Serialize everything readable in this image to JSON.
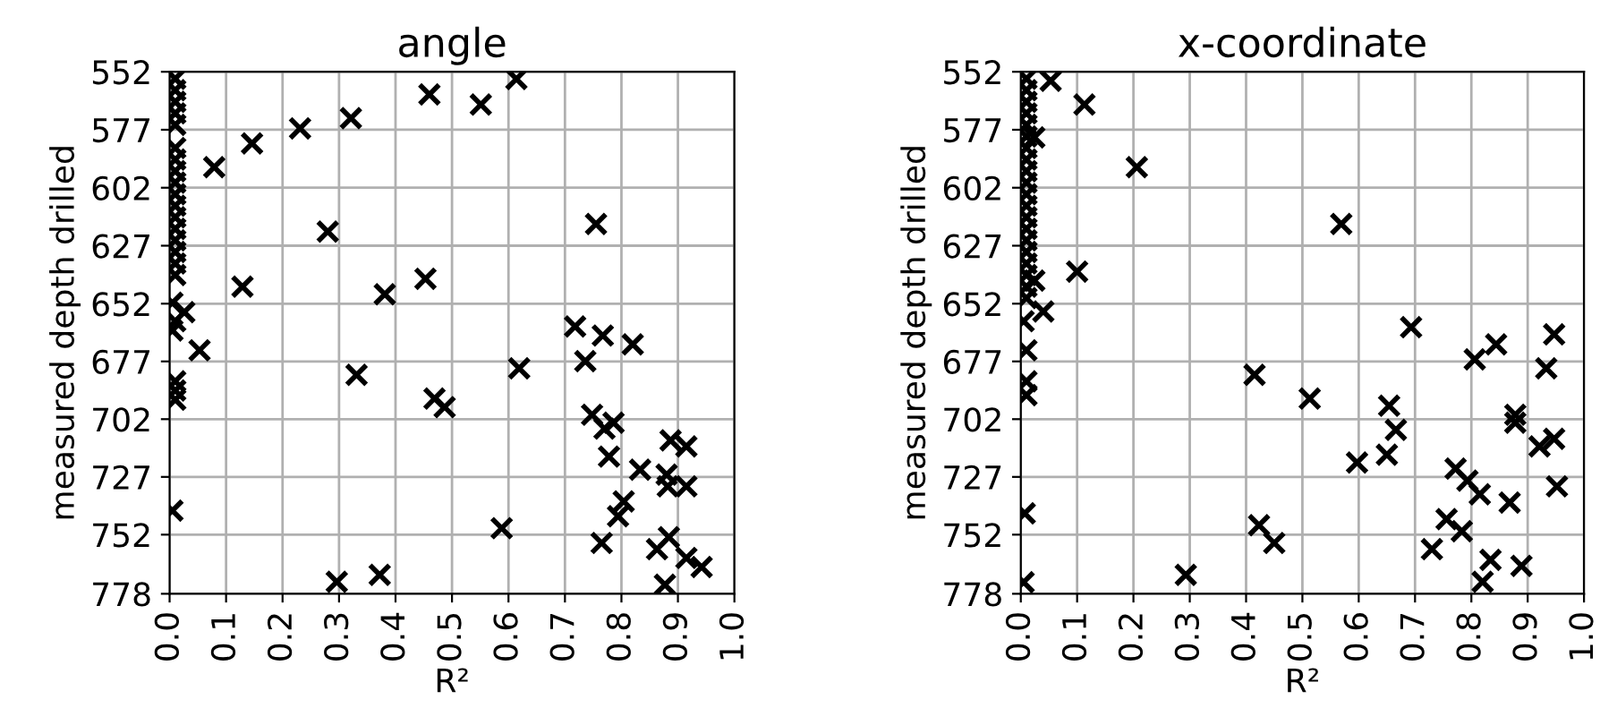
{
  "chart_data": [
    {
      "type": "scatter",
      "title": "angle",
      "xlabel": "R²",
      "ylabel": "measured depth drilled",
      "marker": "cross",
      "grid": true,
      "xlim": [
        0,
        1
      ],
      "xticks": [
        {
          "value": 0,
          "label": "0.0"
        },
        {
          "value": 0.1,
          "label": "0.1"
        },
        {
          "value": 0.2,
          "label": "0.2"
        },
        {
          "value": 0.3,
          "label": "0.3"
        },
        {
          "value": 0.4,
          "label": "0.4"
        },
        {
          "value": 0.5,
          "label": "0.5"
        },
        {
          "value": 0.6,
          "label": "0.6"
        },
        {
          "value": 0.7,
          "label": "0.7"
        },
        {
          "value": 0.8,
          "label": "0.8"
        },
        {
          "value": 0.9,
          "label": "0.9"
        },
        {
          "value": 1.0,
          "label": "1.0"
        }
      ],
      "ylim": [
        778,
        552
      ],
      "yticks": [
        {
          "value": 552,
          "label": "552"
        },
        {
          "value": 577.1,
          "label": "577"
        },
        {
          "value": 602.2,
          "label": "602"
        },
        {
          "value": 627.3,
          "label": "627"
        },
        {
          "value": 652.4,
          "label": "652"
        },
        {
          "value": 677.4,
          "label": "677"
        },
        {
          "value": 702.4,
          "label": "702"
        },
        {
          "value": 727.4,
          "label": "727"
        },
        {
          "value": 752.4,
          "label": "752"
        },
        {
          "value": 778,
          "label": "778"
        }
      ],
      "series": [
        {
          "color": "#000000",
          "x": [
            0.01,
            0.01,
            0.01,
            0.01,
            0.01,
            0.01,
            0.01,
            0.01,
            0.01,
            0.01,
            0.01,
            0.01,
            0.01,
            0.01,
            0.01,
            0.01,
            0.01,
            0.005,
            0.01,
            0.005,
            0.01,
            0.01,
            0.01,
            0.005,
            0.079,
            0.146,
            0.231,
            0.321,
            0.46,
            0.28,
            0.129,
            0.026,
            0.053,
            0.381,
            0.453,
            0.331,
            0.469,
            0.487,
            0.296,
            0.372,
            0.551,
            0.614,
            0.755,
            0.718,
            0.767,
            0.82,
            0.736,
            0.619,
            0.748,
            0.77,
            0.786,
            0.778,
            0.833,
            0.887,
            0.915,
            0.882,
            0.915,
            0.88,
            0.804,
            0.794,
            0.588,
            0.765,
            0.863,
            0.884,
            0.915,
            0.942,
            0.877
          ],
          "values": [
            555,
            560,
            565,
            570,
            575,
            585,
            590,
            595,
            600,
            605,
            610,
            615,
            620,
            625,
            630,
            635,
            640,
            652,
            660,
            664,
            686,
            690,
            694,
            742,
            593.3,
            583,
            576.5,
            572.1,
            561.8,
            621.2,
            645,
            656.1,
            672.6,
            648.3,
            641.6,
            683.2,
            693.5,
            697.2,
            772.8,
            769.8,
            566.2,
            555.1,
            617.9,
            662.3,
            666.2,
            670,
            677.3,
            680.4,
            700.5,
            706.5,
            703.9,
            718.6,
            724.3,
            711.6,
            714.2,
            731.5,
            731.5,
            726.4,
            738,
            744.4,
            749.6,
            756,
            758.7,
            753.5,
            762.5,
            766.4,
            774.1
          ]
        }
      ]
    },
    {
      "type": "scatter",
      "title": "x-coordinate",
      "xlabel": "R²",
      "ylabel": "measured depth drilled",
      "marker": "cross",
      "grid": true,
      "xlim": [
        0,
        1
      ],
      "xticks": [
        {
          "value": 0,
          "label": "0.0"
        },
        {
          "value": 0.1,
          "label": "0.1"
        },
        {
          "value": 0.2,
          "label": "0.2"
        },
        {
          "value": 0.3,
          "label": "0.3"
        },
        {
          "value": 0.4,
          "label": "0.4"
        },
        {
          "value": 0.5,
          "label": "0.5"
        },
        {
          "value": 0.6,
          "label": "0.6"
        },
        {
          "value": 0.7,
          "label": "0.7"
        },
        {
          "value": 0.8,
          "label": "0.8"
        },
        {
          "value": 0.9,
          "label": "0.9"
        },
        {
          "value": 1.0,
          "label": "1.0"
        }
      ],
      "ylim": [
        778,
        552
      ],
      "yticks": [
        {
          "value": 552,
          "label": "552"
        },
        {
          "value": 577.1,
          "label": "577"
        },
        {
          "value": 602.2,
          "label": "602"
        },
        {
          "value": 627.3,
          "label": "627"
        },
        {
          "value": 652.4,
          "label": "652"
        },
        {
          "value": 677.4,
          "label": "677"
        },
        {
          "value": 702.4,
          "label": "702"
        },
        {
          "value": 727.4,
          "label": "727"
        },
        {
          "value": 752.4,
          "label": "752"
        },
        {
          "value": 778,
          "label": "778"
        }
      ],
      "series": [
        {
          "color": "#000000",
          "x": [
            0.01,
            0.01,
            0.01,
            0.01,
            0.01,
            0.01,
            0.01,
            0.01,
            0.01,
            0.01,
            0.01,
            0.01,
            0.01,
            0.01,
            0.01,
            0.01,
            0.01,
            0.01,
            0.01,
            0.01,
            0.005,
            0.01,
            0.01,
            0.01,
            0.007,
            0.005,
            0.053,
            0.113,
            0.024,
            0.206,
            0.1,
            0.024,
            0.04,
            0.415,
            0.423,
            0.45,
            0.293,
            0.569,
            0.693,
            0.806,
            0.844,
            0.947,
            0.933,
            0.513,
            0.654,
            0.666,
            0.65,
            0.597,
            0.878,
            0.878,
            0.921,
            0.947,
            0.952,
            0.772,
            0.793,
            0.815,
            0.868,
            0.756,
            0.783,
            0.73,
            0.834,
            0.889,
            0.82
          ],
          "values": [
            555,
            560,
            565,
            570,
            575,
            580,
            585,
            590,
            595,
            600,
            605,
            610,
            615,
            620,
            625,
            630,
            635,
            640,
            645,
            650,
            660,
            672.6,
            686,
            692,
            743.2,
            773,
            555.9,
            566.2,
            580.4,
            593.3,
            638.5,
            642.4,
            655.8,
            683.2,
            748.3,
            756,
            769.8,
            617.9,
            662.6,
            676.5,
            670,
            665.7,
            680.4,
            693.5,
            696.6,
            707,
            717.8,
            721.2,
            700.5,
            703.9,
            714.2,
            710.9,
            731.5,
            723.8,
            729,
            734.9,
            738.5,
            745.7,
            750.9,
            758.7,
            763.3,
            765.9,
            772.8
          ]
        }
      ]
    }
  ]
}
